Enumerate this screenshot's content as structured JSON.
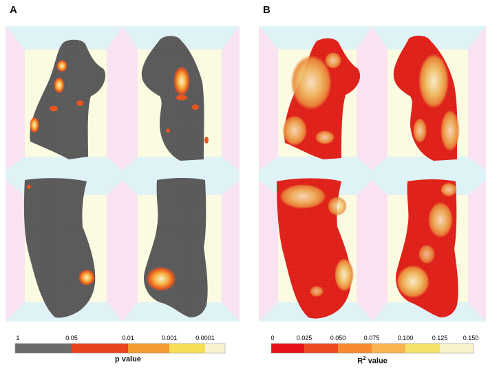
{
  "panels": [
    {
      "letter": "A"
    },
    {
      "letter": "B"
    }
  ],
  "colorbars": {
    "p_value": {
      "title": "p value",
      "tick_labels": [
        "1",
        "0.05",
        "0.01",
        "0.001",
        "0.0001"
      ],
      "colors": [
        "#6b6b6b",
        "#e8431e",
        "#f59a2e",
        "#f7df57",
        "#fbf2cf"
      ]
    },
    "r2_value": {
      "title_main": "R",
      "title_sup": "2",
      "title_rest": " value",
      "tick_labels": [
        "0",
        "0.025",
        "0.050",
        "0.075",
        "0.100",
        "0.125",
        "0.150"
      ],
      "colors": [
        "#e8121a",
        "#ee4a22",
        "#f58a2f",
        "#f8b450",
        "#f6e16a",
        "#faf2c9"
      ]
    }
  },
  "colors": {
    "mesh_gray": "#5c5c5c",
    "mesh_red": "#e11d1a",
    "bg_pink": "#f9e4f4",
    "bg_cyan": "#def3f5",
    "bg_cream": "#fbfbe2"
  }
}
